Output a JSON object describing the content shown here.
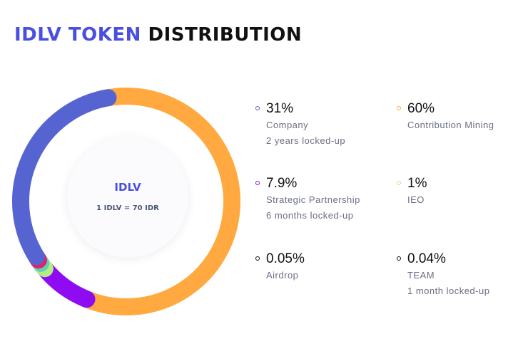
{
  "header": {
    "title_accent": "IDLV TOKEN",
    "title_rest": "DISTRIBUTION"
  },
  "center": {
    "name": "IDLV",
    "rate": "1 IDLV = 70 IDR"
  },
  "legend": [
    {
      "percent": "31%",
      "label": "Company",
      "note": "2 years locked-up",
      "color": "#5664d2"
    },
    {
      "percent": "60%",
      "label": "Contribution Mining",
      "note": "",
      "color": "#ffa940"
    },
    {
      "percent": "7.9%",
      "label": "Strategic Partnership",
      "note": "6 months locked-up",
      "color": "#8f0cf2"
    },
    {
      "percent": "1%",
      "label": "IEO",
      "note": "",
      "color": "#b5ec86"
    },
    {
      "percent": "0.05%",
      "label": "Airdrop",
      "note": "",
      "color": "#111111"
    },
    {
      "percent": "0.04%",
      "label": "TEAM",
      "note": "1 month locked-up",
      "color": "#111111"
    }
  ],
  "chart_data": {
    "type": "pie",
    "categories": [
      "Contribution Mining",
      "Strategic Partnership",
      "IEO",
      "Airdrop",
      "TEAM",
      "Company"
    ],
    "values": [
      60,
      7.9,
      1,
      0.05,
      0.04,
      31
    ],
    "colors": [
      "#ffa940",
      "#8f0cf2",
      "#b5ec86",
      "#5fd1b3",
      "#e0226e",
      "#5664d2"
    ],
    "center_label": "IDLV",
    "center_sublabel": "1 IDLV = 70 IDR"
  }
}
